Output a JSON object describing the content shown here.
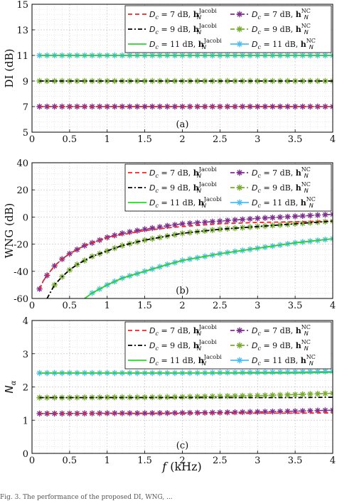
{
  "figure": {
    "shared_xlabel_italic": "f",
    "shared_xlabel_unit": " (kHz)",
    "caption_fragment": "Fig. 3.  The performance of the proposed DI, WNG, ..."
  },
  "legend_entries": [
    {
      "prefix": "D",
      "sub": "c",
      "value": " = 7 dB, ",
      "vec": "h",
      "vsub": "N",
      "sup": "Jacobi",
      "color": "#e8292b",
      "dash": "6,4",
      "marker": "none"
    },
    {
      "prefix": "D",
      "sub": "c",
      "value": " = 7 dB, ",
      "vec": "h",
      "vsub": "N",
      "sup": "NC",
      "color": "#7e2f8e",
      "dash": "6,3,2,3",
      "marker": "star"
    },
    {
      "prefix": "D",
      "sub": "c",
      "value": " = 9 dB, ",
      "vec": "h",
      "vsub": "N",
      "sup": "Jacobi",
      "color": "#000000",
      "dash": "6,3,2,3",
      "marker": "none"
    },
    {
      "prefix": "D",
      "sub": "c",
      "value": " = 9 dB, ",
      "vec": "h",
      "vsub": "N",
      "sup": "NC",
      "color": "#77ac30",
      "dash": "6,3,2,3",
      "marker": "star"
    },
    {
      "prefix": "D",
      "sub": "c",
      "value": " = 11 dB, ",
      "vec": "h",
      "vsub": "N",
      "sup": "Jacobi",
      "color": "#2bd42b",
      "dash": "none",
      "marker": "none"
    },
    {
      "prefix": "D",
      "sub": "c",
      "value": " = 11 dB, ",
      "vec": "h",
      "vsub": "N",
      "sup": "NC",
      "color": "#4dbeee",
      "dash": "none",
      "marker": "star"
    }
  ],
  "chart_data": [
    {
      "type": "line",
      "panel_label": "(a)",
      "ylabel": "DI (dB)",
      "ylabel_italic": false,
      "xlim": [
        0,
        4
      ],
      "ylim": [
        5,
        15
      ],
      "xticks": [
        "0",
        "0.5",
        "1",
        "1.5",
        "2",
        "2.5",
        "3",
        "3.5",
        "4"
      ],
      "yticks": [
        "5",
        "7",
        "9",
        "11",
        "13",
        "15"
      ],
      "grid": true,
      "legend": "top-right",
      "x": [
        0.1,
        0.5,
        1.0,
        1.5,
        2.0,
        2.5,
        3.0,
        3.5,
        4.0
      ],
      "marker_x": [
        0.1,
        0.2,
        0.3,
        0.4,
        0.5,
        0.6,
        0.7,
        0.8,
        0.9,
        1.0,
        1.1,
        1.2,
        1.3,
        1.4,
        1.5,
        1.6,
        1.7,
        1.8,
        1.9,
        2.0,
        2.1,
        2.2,
        2.3,
        2.4,
        2.5,
        2.6,
        2.7,
        2.8,
        2.9,
        3.0,
        3.1,
        3.2,
        3.3,
        3.4,
        3.5,
        3.6,
        3.7,
        3.8,
        3.9,
        4.0
      ],
      "series": [
        {
          "legend_index": 0,
          "values": [
            7,
            7,
            7,
            7,
            7,
            7,
            7,
            7,
            7
          ]
        },
        {
          "legend_index": 1,
          "values": [
            7,
            7,
            7,
            7,
            7,
            7,
            7,
            7,
            7
          ]
        },
        {
          "legend_index": 2,
          "values": [
            9,
            9,
            9,
            9,
            9,
            9,
            9,
            9,
            9
          ]
        },
        {
          "legend_index": 3,
          "values": [
            9,
            9,
            9,
            9,
            9,
            9,
            9,
            9,
            9
          ]
        },
        {
          "legend_index": 4,
          "values": [
            11,
            11,
            11,
            11,
            11,
            11,
            11,
            11,
            11
          ]
        },
        {
          "legend_index": 5,
          "values": [
            11,
            11,
            11,
            11,
            11,
            11,
            11,
            11,
            11
          ]
        }
      ]
    },
    {
      "type": "line",
      "panel_label": "(b)",
      "ylabel": "WNG (dB)",
      "ylabel_italic": false,
      "xlim": [
        0,
        4
      ],
      "ylim": [
        -60,
        40
      ],
      "xticks": [
        "0",
        "0.5",
        "1",
        "1.5",
        "2",
        "2.5",
        "3",
        "3.5",
        "4"
      ],
      "yticks": [
        "-60",
        "-40",
        "-20",
        "0",
        "20",
        "40"
      ],
      "grid": true,
      "legend": "top-right",
      "x": [
        0.1,
        0.15,
        0.2,
        0.3,
        0.4,
        0.5,
        0.6,
        0.7,
        0.8,
        1.0,
        1.2,
        1.5,
        1.8,
        2.0,
        2.5,
        3.0,
        3.5,
        4.0
      ],
      "marker_x": [
        0.1,
        0.2,
        0.3,
        0.4,
        0.5,
        0.6,
        0.7,
        0.8,
        0.9,
        1.0,
        1.1,
        1.2,
        1.3,
        1.4,
        1.5,
        1.6,
        1.7,
        1.8,
        1.9,
        2.0,
        2.1,
        2.2,
        2.3,
        2.4,
        2.5,
        2.6,
        2.7,
        2.8,
        2.9,
        3.0,
        3.1,
        3.2,
        3.3,
        3.4,
        3.5,
        3.6,
        3.7,
        3.8,
        3.9,
        4.0
      ],
      "series": [
        {
          "legend_index": 0,
          "values": [
            -53,
            -47,
            -43,
            -36,
            -31,
            -27,
            -24,
            -21,
            -19,
            -15,
            -13,
            -10,
            -8,
            -7,
            -5,
            -4,
            -3.5,
            -3
          ]
        },
        {
          "legend_index": 1,
          "values": [
            -53,
            -47,
            -43,
            -36,
            -31,
            -27,
            -24,
            -21,
            -19,
            -15,
            -12,
            -9,
            -6.5,
            -5,
            -3,
            -1,
            0.5,
            2
          ]
        },
        {
          "legend_index": 2,
          "values": [
            null,
            null,
            -60,
            -50,
            -44,
            -39,
            -35,
            -32,
            -29,
            -25,
            -21,
            -17,
            -14,
            -12,
            -9,
            -7,
            -5,
            -3
          ]
        },
        {
          "legend_index": 3,
          "values": [
            null,
            null,
            -60,
            -50,
            -44,
            -39,
            -35,
            -32,
            -29,
            -25,
            -21,
            -17,
            -14,
            -12,
            -9,
            -7,
            -5,
            -3
          ]
        },
        {
          "legend_index": 4,
          "values": [
            null,
            null,
            null,
            null,
            null,
            null,
            null,
            -60,
            -56,
            -50,
            -45,
            -40,
            -35,
            -32,
            -27,
            -23,
            -19,
            -16
          ]
        },
        {
          "legend_index": 5,
          "values": [
            null,
            null,
            null,
            null,
            null,
            null,
            null,
            -60,
            -56,
            -50,
            -45,
            -40,
            -35,
            -32,
            -27,
            -23,
            -19,
            -16
          ]
        }
      ]
    },
    {
      "type": "line",
      "panel_label": "(c)",
      "ylabel": "N",
      "ylabel_sub": "α",
      "ylabel_italic": true,
      "xlim": [
        0,
        4
      ],
      "ylim": [
        0,
        4
      ],
      "xticks": [
        "0",
        "0.5",
        "1",
        "1.5",
        "2",
        "2.5",
        "3",
        "3.5",
        "4"
      ],
      "yticks": [
        "0",
        "1",
        "2",
        "3",
        "4"
      ],
      "grid": true,
      "legend": "top-right",
      "x": [
        0.1,
        0.5,
        1.0,
        1.5,
        2.0,
        2.5,
        3.0,
        3.5,
        4.0
      ],
      "marker_x": [
        0.1,
        0.2,
        0.3,
        0.4,
        0.5,
        0.6,
        0.7,
        0.8,
        0.9,
        1.0,
        1.1,
        1.2,
        1.3,
        1.4,
        1.5,
        1.6,
        1.7,
        1.8,
        1.9,
        2.0,
        2.1,
        2.2,
        2.3,
        2.4,
        2.5,
        2.6,
        2.7,
        2.8,
        2.9,
        3.0,
        3.1,
        3.2,
        3.3,
        3.4,
        3.5,
        3.6,
        3.7,
        3.8,
        3.9,
        4.0
      ],
      "series": [
        {
          "legend_index": 0,
          "values": [
            1.2,
            1.2,
            1.2,
            1.2,
            1.2,
            1.2,
            1.21,
            1.21,
            1.22
          ]
        },
        {
          "legend_index": 1,
          "values": [
            1.2,
            1.2,
            1.21,
            1.21,
            1.22,
            1.23,
            1.25,
            1.27,
            1.3
          ]
        },
        {
          "legend_index": 2,
          "values": [
            1.68,
            1.68,
            1.68,
            1.68,
            1.68,
            1.68,
            1.68,
            1.68,
            1.69
          ]
        },
        {
          "legend_index": 3,
          "values": [
            1.68,
            1.68,
            1.69,
            1.69,
            1.7,
            1.72,
            1.74,
            1.77,
            1.81
          ]
        },
        {
          "legend_index": 4,
          "values": [
            2.42,
            2.42,
            2.42,
            2.42,
            2.42,
            2.42,
            2.42,
            2.42,
            2.44
          ]
        },
        {
          "legend_index": 5,
          "values": [
            2.42,
            2.42,
            2.42,
            2.42,
            2.42,
            2.43,
            2.44,
            2.45,
            2.47
          ]
        }
      ]
    }
  ]
}
